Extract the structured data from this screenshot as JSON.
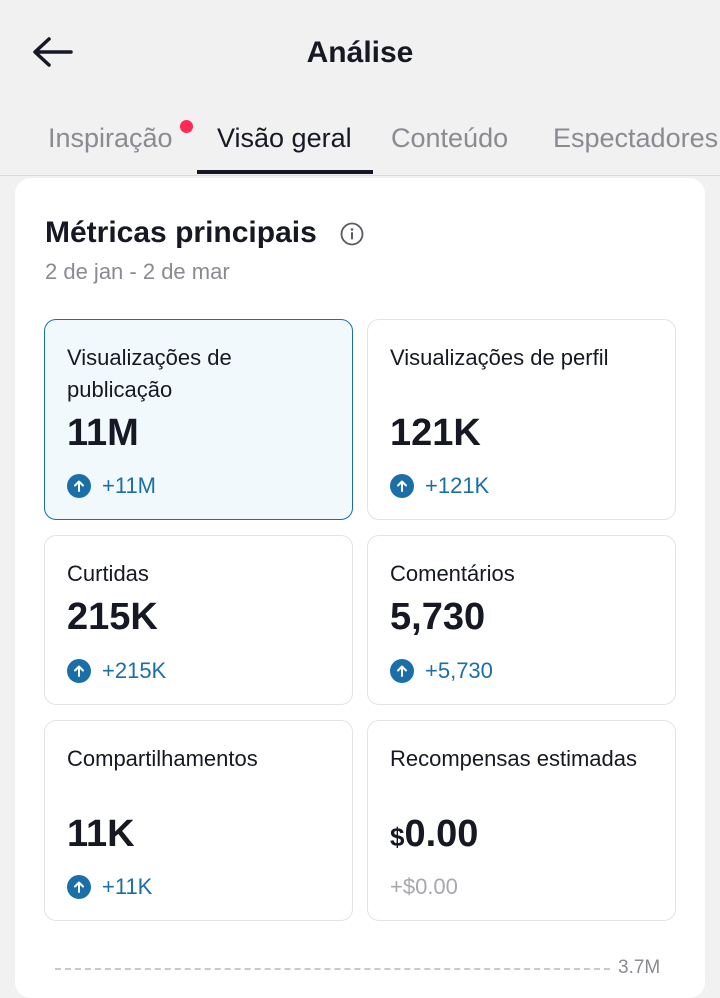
{
  "header": {
    "title": "Análise",
    "back_icon": "arrow-left-icon"
  },
  "tabs": [
    {
      "label": "Inspiração",
      "has_dot": true
    },
    {
      "label": "Visão geral",
      "active": true
    },
    {
      "label": "Conteúdo"
    },
    {
      "label": "Espectadores"
    }
  ],
  "metrics_section": {
    "title": "Métricas principais",
    "date_range": "2 de jan - 2 de mar",
    "items": [
      {
        "label": "Visualizações de publicação",
        "value": "11M",
        "delta": "+11M",
        "selected": true
      },
      {
        "label": "Visualizações de perfil",
        "value": "121K",
        "delta": "+121K"
      },
      {
        "label": "Curtidas",
        "value": "215K",
        "delta": "+215K"
      },
      {
        "label": "Comentários",
        "value": "5,730",
        "delta": "+5,730"
      },
      {
        "label": "Compartilhamentos",
        "value": "11K",
        "delta": "+11K"
      },
      {
        "label": "Recompensas estimadas",
        "currency": "$",
        "value": "0.00",
        "delta": "+$0.00"
      }
    ]
  },
  "chart": {
    "top_tick": "3.7M"
  },
  "colors": {
    "accent": "#1a6fa8",
    "notification_dot": "#fe2c55",
    "selected_bg": "#f2f9fd"
  }
}
